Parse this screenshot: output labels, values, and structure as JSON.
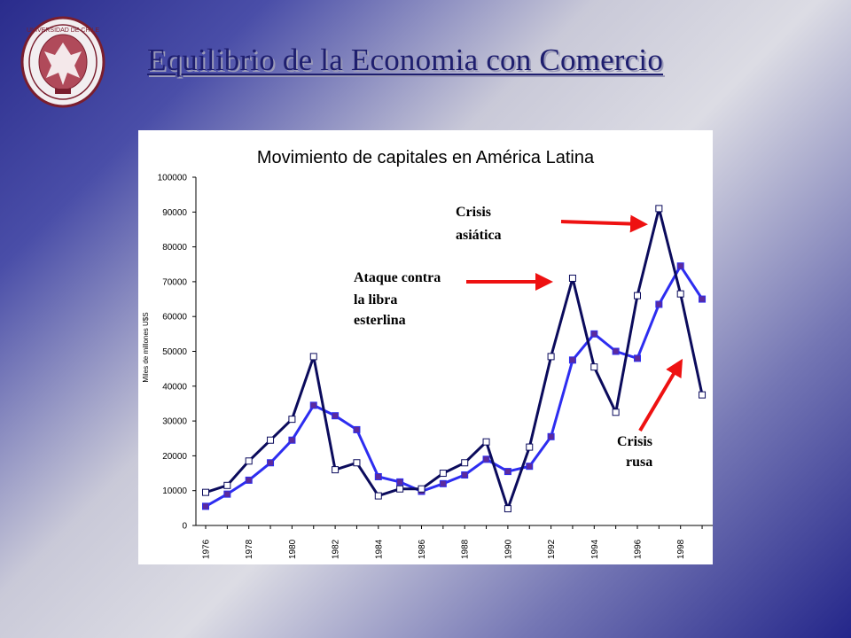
{
  "slide": {
    "title": "Equilibrio de la Economia con Comercio",
    "seal_text": "UNIVERSIDAD DE CHILE"
  },
  "colors": {
    "series_dark": "#0b0b5c",
    "series_blue": "#2d2df0",
    "marker_purple": "#5b2a9e",
    "arrow": "#ee1111"
  },
  "chart_data": {
    "type": "line",
    "title": "Movimiento de capitales en América Latina",
    "ylabel": "Miles de millones U$S",
    "xlabel": "",
    "ylim": [
      0,
      100000
    ],
    "yticks": [
      "0",
      "10000",
      "20000",
      "30000",
      "40000",
      "50000",
      "60000",
      "70000",
      "80000",
      "90000",
      "100000"
    ],
    "x": [
      1976,
      1977,
      1978,
      1979,
      1980,
      1981,
      1982,
      1983,
      1984,
      1985,
      1986,
      1987,
      1988,
      1989,
      1990,
      1991,
      1992,
      1993,
      1994,
      1995,
      1996,
      1997,
      1998,
      1999
    ],
    "xtick_labels": [
      "1976",
      "1978",
      "1980",
      "1982",
      "1984",
      "1986",
      "1988",
      "1990",
      "1992",
      "1994",
      "1996",
      "1998"
    ],
    "grid": false,
    "legend": "none",
    "series": [
      {
        "marker": "open-square",
        "values": [
          9500,
          11500,
          18500,
          24500,
          30500,
          48500,
          16000,
          18000,
          8500,
          10500,
          10500,
          15000,
          18000,
          24000,
          4800,
          22500,
          48500,
          71000,
          45500,
          32500,
          66000,
          91000,
          66500,
          37500
        ]
      },
      {
        "marker": "filled-square",
        "values": [
          5500,
          9000,
          13000,
          18000,
          24500,
          34500,
          31500,
          27500,
          14000,
          12500,
          9800,
          12000,
          14500,
          19000,
          15500,
          17000,
          25500,
          47500,
          55000,
          50000,
          48000,
          63500,
          74500,
          65000
        ]
      }
    ],
    "annotations": [
      {
        "label_lines": [
          "Crisis",
          "asiática"
        ]
      },
      {
        "label_lines": [
          "Ataque contra",
          "la libra",
          "esterlina"
        ]
      },
      {
        "label_lines": [
          "Crisis",
          "rusa"
        ]
      }
    ]
  }
}
